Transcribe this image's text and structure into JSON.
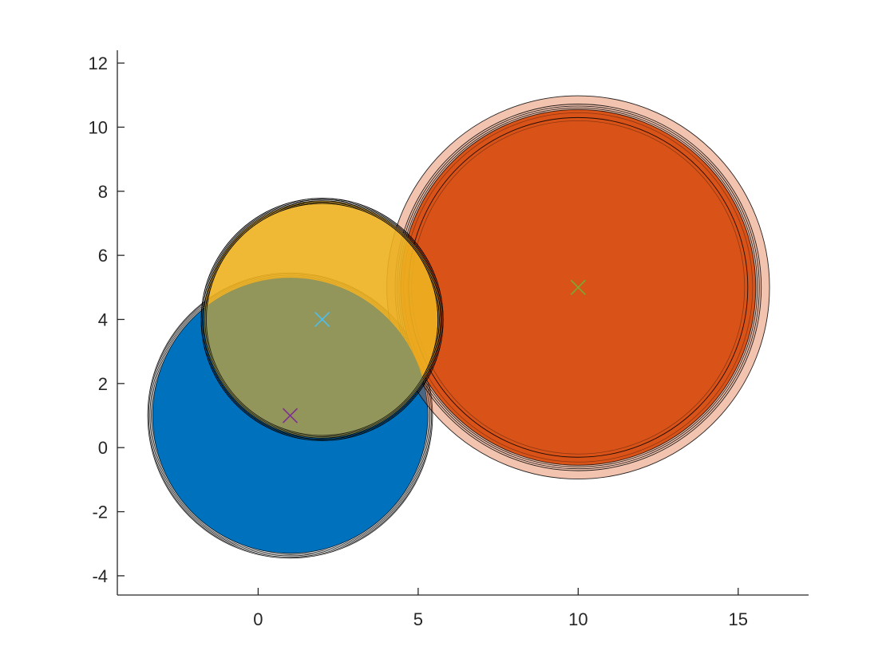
{
  "chart_data": {
    "type": "scatter",
    "title": "",
    "xlabel": "",
    "ylabel": "",
    "xlim": [
      -4.4,
      17.2
    ],
    "ylim": [
      -4.6,
      12.4
    ],
    "x_ticks": [
      0,
      5,
      10,
      15
    ],
    "x_tick_labels": [
      "0",
      "5",
      "10",
      "15"
    ],
    "y_ticks": [
      -4,
      -2,
      0,
      2,
      4,
      6,
      8,
      10,
      12
    ],
    "y_tick_labels": [
      "-4",
      "-2",
      "0",
      "2",
      "4",
      "6",
      "8",
      "10",
      "12"
    ],
    "grid": false,
    "legend": "none",
    "circle_groups": [
      {
        "color": "#0072BD",
        "center": [
          1,
          1
        ],
        "fill_radius": 4.3,
        "fill_opacity": 1.0,
        "outline_radii": [
          4.45,
          4.42,
          4.38,
          4.34,
          4.3
        ]
      },
      {
        "color": "#D95319",
        "center": [
          10,
          5
        ],
        "fill_radius": 5.55,
        "fill_opacity": 1.0,
        "halo_radius": 5.98,
        "halo_opacity": 0.35,
        "outline_radii": [
          5.98,
          5.72,
          5.66,
          5.6,
          5.55,
          5.3
        ],
        "faint_outline_radii": [
          5.45,
          5.2
        ]
      },
      {
        "color": "#EDB120",
        "center": [
          2,
          4
        ],
        "fill_radius": 3.7,
        "fill_opacity": 0.9,
        "outline_radii": [
          3.78,
          3.74,
          3.7,
          3.66,
          3.62
        ]
      }
    ],
    "overlap_color": "#92965B",
    "markers": [
      {
        "x": 2,
        "y": 4,
        "symbol": "x",
        "color": "#4DBEEE"
      },
      {
        "x": 1,
        "y": 1,
        "symbol": "x",
        "color": "#7E2F8E"
      },
      {
        "x": 10,
        "y": 5,
        "symbol": "x",
        "color": "#77AC30"
      }
    ]
  }
}
